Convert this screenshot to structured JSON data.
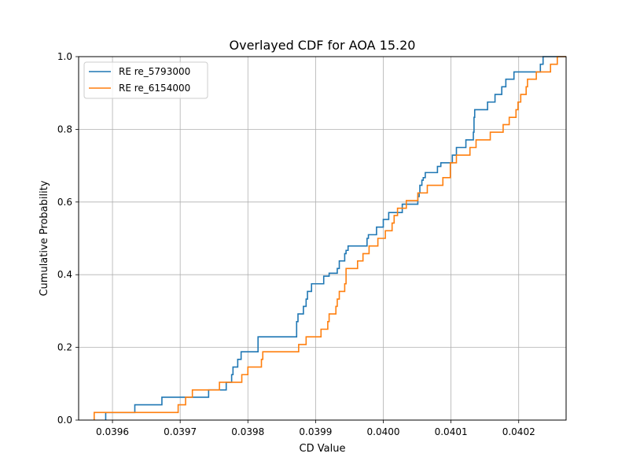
{
  "chart_data": {
    "type": "line",
    "title": "Overlayed CDF for AOA 15.20",
    "xlabel": "CD Value",
    "ylabel": "Cumulative Probability",
    "xlim": [
      0.03955,
      0.04027
    ],
    "ylim": [
      0.0,
      1.0
    ],
    "xticks": [
      "0.0396",
      "0.0397",
      "0.0398",
      "0.0399",
      "0.0400",
      "0.0401",
      "0.0402"
    ],
    "yticks": [
      "0.0",
      "0.2",
      "0.4",
      "0.6",
      "0.8",
      "1.0"
    ],
    "grid": true,
    "legend_position": "upper-left",
    "step": "post",
    "series": [
      {
        "name": "RE re_5793000",
        "color": "#1f77b4",
        "x": [
          0.03959,
          0.039633,
          0.039673,
          0.039742,
          0.039768,
          0.039776,
          0.039778,
          0.039785,
          0.03979,
          0.039815,
          0.039872,
          0.039874,
          0.039882,
          0.039886,
          0.039888,
          0.039894,
          0.039912,
          0.03992,
          0.039932,
          0.039935,
          0.039943,
          0.039945,
          0.039948,
          0.039976,
          0.039978,
          0.03999,
          0.04,
          0.040008,
          0.040028,
          0.040051,
          0.040053,
          0.040054,
          0.040057,
          0.040059,
          0.040062,
          0.04008,
          0.040085,
          0.040102,
          0.040108,
          0.040122,
          0.040133,
          0.040134,
          0.040135,
          0.040154,
          0.040165,
          0.040175,
          0.040181,
          0.040193,
          0.040232,
          0.040236
        ],
        "y": [
          0.021,
          0.042,
          0.063,
          0.083,
          0.104,
          0.125,
          0.146,
          0.167,
          0.188,
          0.229,
          0.271,
          0.292,
          0.313,
          0.333,
          0.354,
          0.375,
          0.396,
          0.404,
          0.417,
          0.438,
          0.458,
          0.467,
          0.479,
          0.5,
          0.51,
          0.531,
          0.552,
          0.571,
          0.594,
          0.615,
          0.625,
          0.646,
          0.66,
          0.667,
          0.681,
          0.698,
          0.708,
          0.729,
          0.75,
          0.771,
          0.792,
          0.833,
          0.854,
          0.875,
          0.896,
          0.917,
          0.938,
          0.958,
          0.979,
          1.0
        ]
      },
      {
        "name": "RE re_6154000",
        "color": "#ff7f0e",
        "x": [
          0.039573,
          0.039697,
          0.039708,
          0.039718,
          0.039745,
          0.039758,
          0.039778,
          0.039791,
          0.0398,
          0.03982,
          0.039822,
          0.039875,
          0.039886,
          0.039908,
          0.039918,
          0.03992,
          0.03993,
          0.039932,
          0.039935,
          0.039943,
          0.039945,
          0.039962,
          0.03997,
          0.039979,
          0.039992,
          0.040003,
          0.040013,
          0.040016,
          0.040021,
          0.040034,
          0.040044,
          0.040051,
          0.040065,
          0.040088,
          0.040099,
          0.040108,
          0.040128,
          0.040137,
          0.040158,
          0.040177,
          0.040186,
          0.040196,
          0.040199,
          0.040203,
          0.040211,
          0.040213,
          0.040226,
          0.040247,
          0.040257
        ],
        "y": [
          0.021,
          0.042,
          0.063,
          0.083,
          0.083,
          0.104,
          0.104,
          0.125,
          0.146,
          0.167,
          0.188,
          0.208,
          0.229,
          0.25,
          0.271,
          0.292,
          0.313,
          0.333,
          0.354,
          0.375,
          0.417,
          0.438,
          0.458,
          0.479,
          0.5,
          0.521,
          0.542,
          0.563,
          0.583,
          0.604,
          0.604,
          0.625,
          0.646,
          0.667,
          0.708,
          0.729,
          0.75,
          0.771,
          0.792,
          0.813,
          0.833,
          0.854,
          0.875,
          0.896,
          0.917,
          0.938,
          0.958,
          0.979,
          1.0
        ]
      }
    ]
  }
}
